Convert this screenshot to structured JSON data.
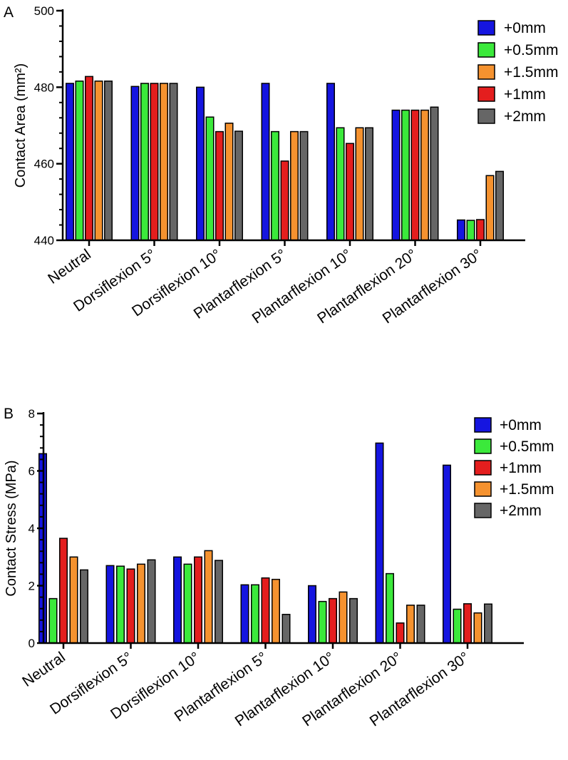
{
  "colors": {
    "+0mm": "#1515e0",
    "+0.5mm": "#3be93b",
    "+1mm": "#e41e1e",
    "+1.5mm": "#f5922f",
    "+2mm": "#666666"
  },
  "chart_data": [
    {
      "type": "bar",
      "panel": "A",
      "title": "",
      "xlabel": "",
      "ylabel": "Contact Area (mm²)",
      "ylim": [
        440,
        500
      ],
      "yticks": [
        440,
        460,
        480,
        500
      ],
      "ytick_labels": [
        "440",
        "460",
        "480",
        "500"
      ],
      "categories": [
        "Neutral",
        "Dorsiflexion 5°",
        "Dorsiflexion 10°",
        "Plantarflexion 5°",
        "Plantarflexion 10°",
        "Plantarflexion 20°",
        "Plantarflexion 30°"
      ],
      "legend": [
        "+0mm",
        "+0.5mm",
        "+1.5mm",
        "+1mm",
        "+2mm"
      ],
      "legend_position": "top-right",
      "series": [
        {
          "name": "+0mm",
          "values": [
            481.0,
            480.2,
            480.0,
            481.0,
            481.0,
            474.0,
            445.3
          ]
        },
        {
          "name": "+0.5mm",
          "values": [
            481.6,
            481.0,
            472.2,
            468.4,
            469.4,
            474.0,
            445.2
          ]
        },
        {
          "name": "+1mm",
          "values": [
            482.8,
            481.0,
            468.4,
            460.7,
            465.3,
            474.0,
            445.4
          ]
        },
        {
          "name": "+1.5mm",
          "values": [
            481.6,
            481.0,
            470.6,
            468.4,
            469.4,
            474.0,
            456.9
          ]
        },
        {
          "name": "+2mm",
          "values": [
            481.6,
            481.0,
            468.5,
            468.4,
            469.4,
            474.8,
            458.0
          ]
        }
      ]
    },
    {
      "type": "bar",
      "panel": "B",
      "title": "",
      "xlabel": "",
      "ylabel": "Contact Stress (MPa)",
      "ylim": [
        0,
        8
      ],
      "yticks": [
        0,
        2,
        4,
        6,
        8
      ],
      "ytick_labels": [
        "0",
        "2",
        "4",
        "6",
        "8"
      ],
      "categories": [
        "Neutral",
        "Dorsiflexion 5°",
        "Dorsiflexion 10°",
        "Plantarflexion 5°",
        "Plantarflexion 10°",
        "Plantarflexion 20°",
        "Plantarflexion 30°"
      ],
      "legend": [
        "+0mm",
        "+0.5mm",
        "+1mm",
        "+1.5mm",
        "+2mm"
      ],
      "legend_position": "top-right",
      "series": [
        {
          "name": "+0mm",
          "values": [
            6.6,
            2.7,
            3.0,
            2.03,
            2.0,
            6.97,
            6.2
          ]
        },
        {
          "name": "+0.5mm",
          "values": [
            1.55,
            2.68,
            2.75,
            2.03,
            1.45,
            2.42,
            1.18
          ]
        },
        {
          "name": "+1mm",
          "values": [
            3.65,
            2.58,
            3.0,
            2.27,
            1.55,
            0.7,
            1.37
          ]
        },
        {
          "name": "+1.5mm",
          "values": [
            3.0,
            2.75,
            3.22,
            2.22,
            1.78,
            1.32,
            1.05
          ]
        },
        {
          "name": "+2mm",
          "values": [
            2.55,
            2.9,
            2.88,
            1.0,
            1.55,
            1.32,
            1.36
          ]
        }
      ]
    }
  ]
}
